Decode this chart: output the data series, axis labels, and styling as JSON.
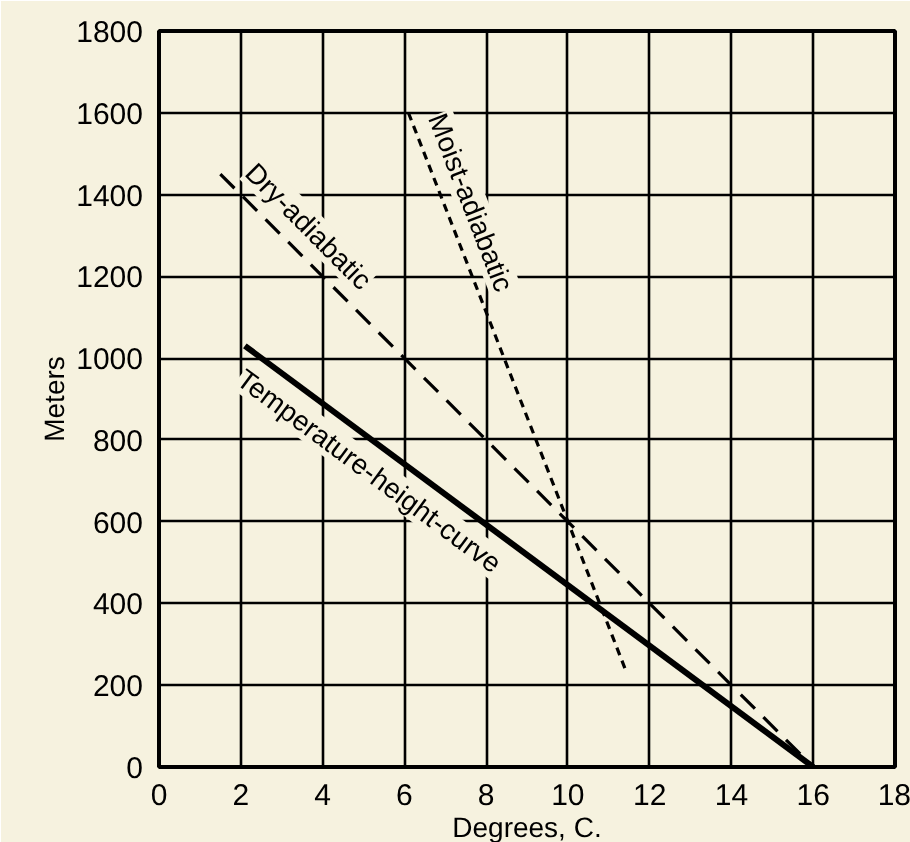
{
  "chart_data": {
    "type": "line",
    "xlabel": "Degrees, C.",
    "ylabel": "Meters",
    "xlim": [
      0,
      18
    ],
    "ylim": [
      0,
      1800
    ],
    "xticks": [
      0,
      2,
      4,
      6,
      8,
      10,
      12,
      14,
      16,
      18
    ],
    "yticks": [
      0,
      200,
      400,
      600,
      800,
      1000,
      1200,
      1400,
      1600,
      1800
    ],
    "grid": true,
    "marker": "none",
    "series": [
      {
        "name": "Temperature-height-curve",
        "color": "#000000",
        "line_style": "solid",
        "x": [
          2.1,
          16
        ],
        "values": [
          1030,
          0
        ]
      },
      {
        "name": "Dry-adiabatic",
        "color": "#000000",
        "line_style": "dashed",
        "x": [
          1.5,
          16
        ],
        "values": [
          1450,
          0
        ]
      },
      {
        "name": "Moist-adiabatic",
        "color": "#000000",
        "line_style": "dotted",
        "x": [
          6.1,
          10,
          11.4
        ],
        "values": [
          1600,
          600,
          240
        ]
      }
    ]
  }
}
